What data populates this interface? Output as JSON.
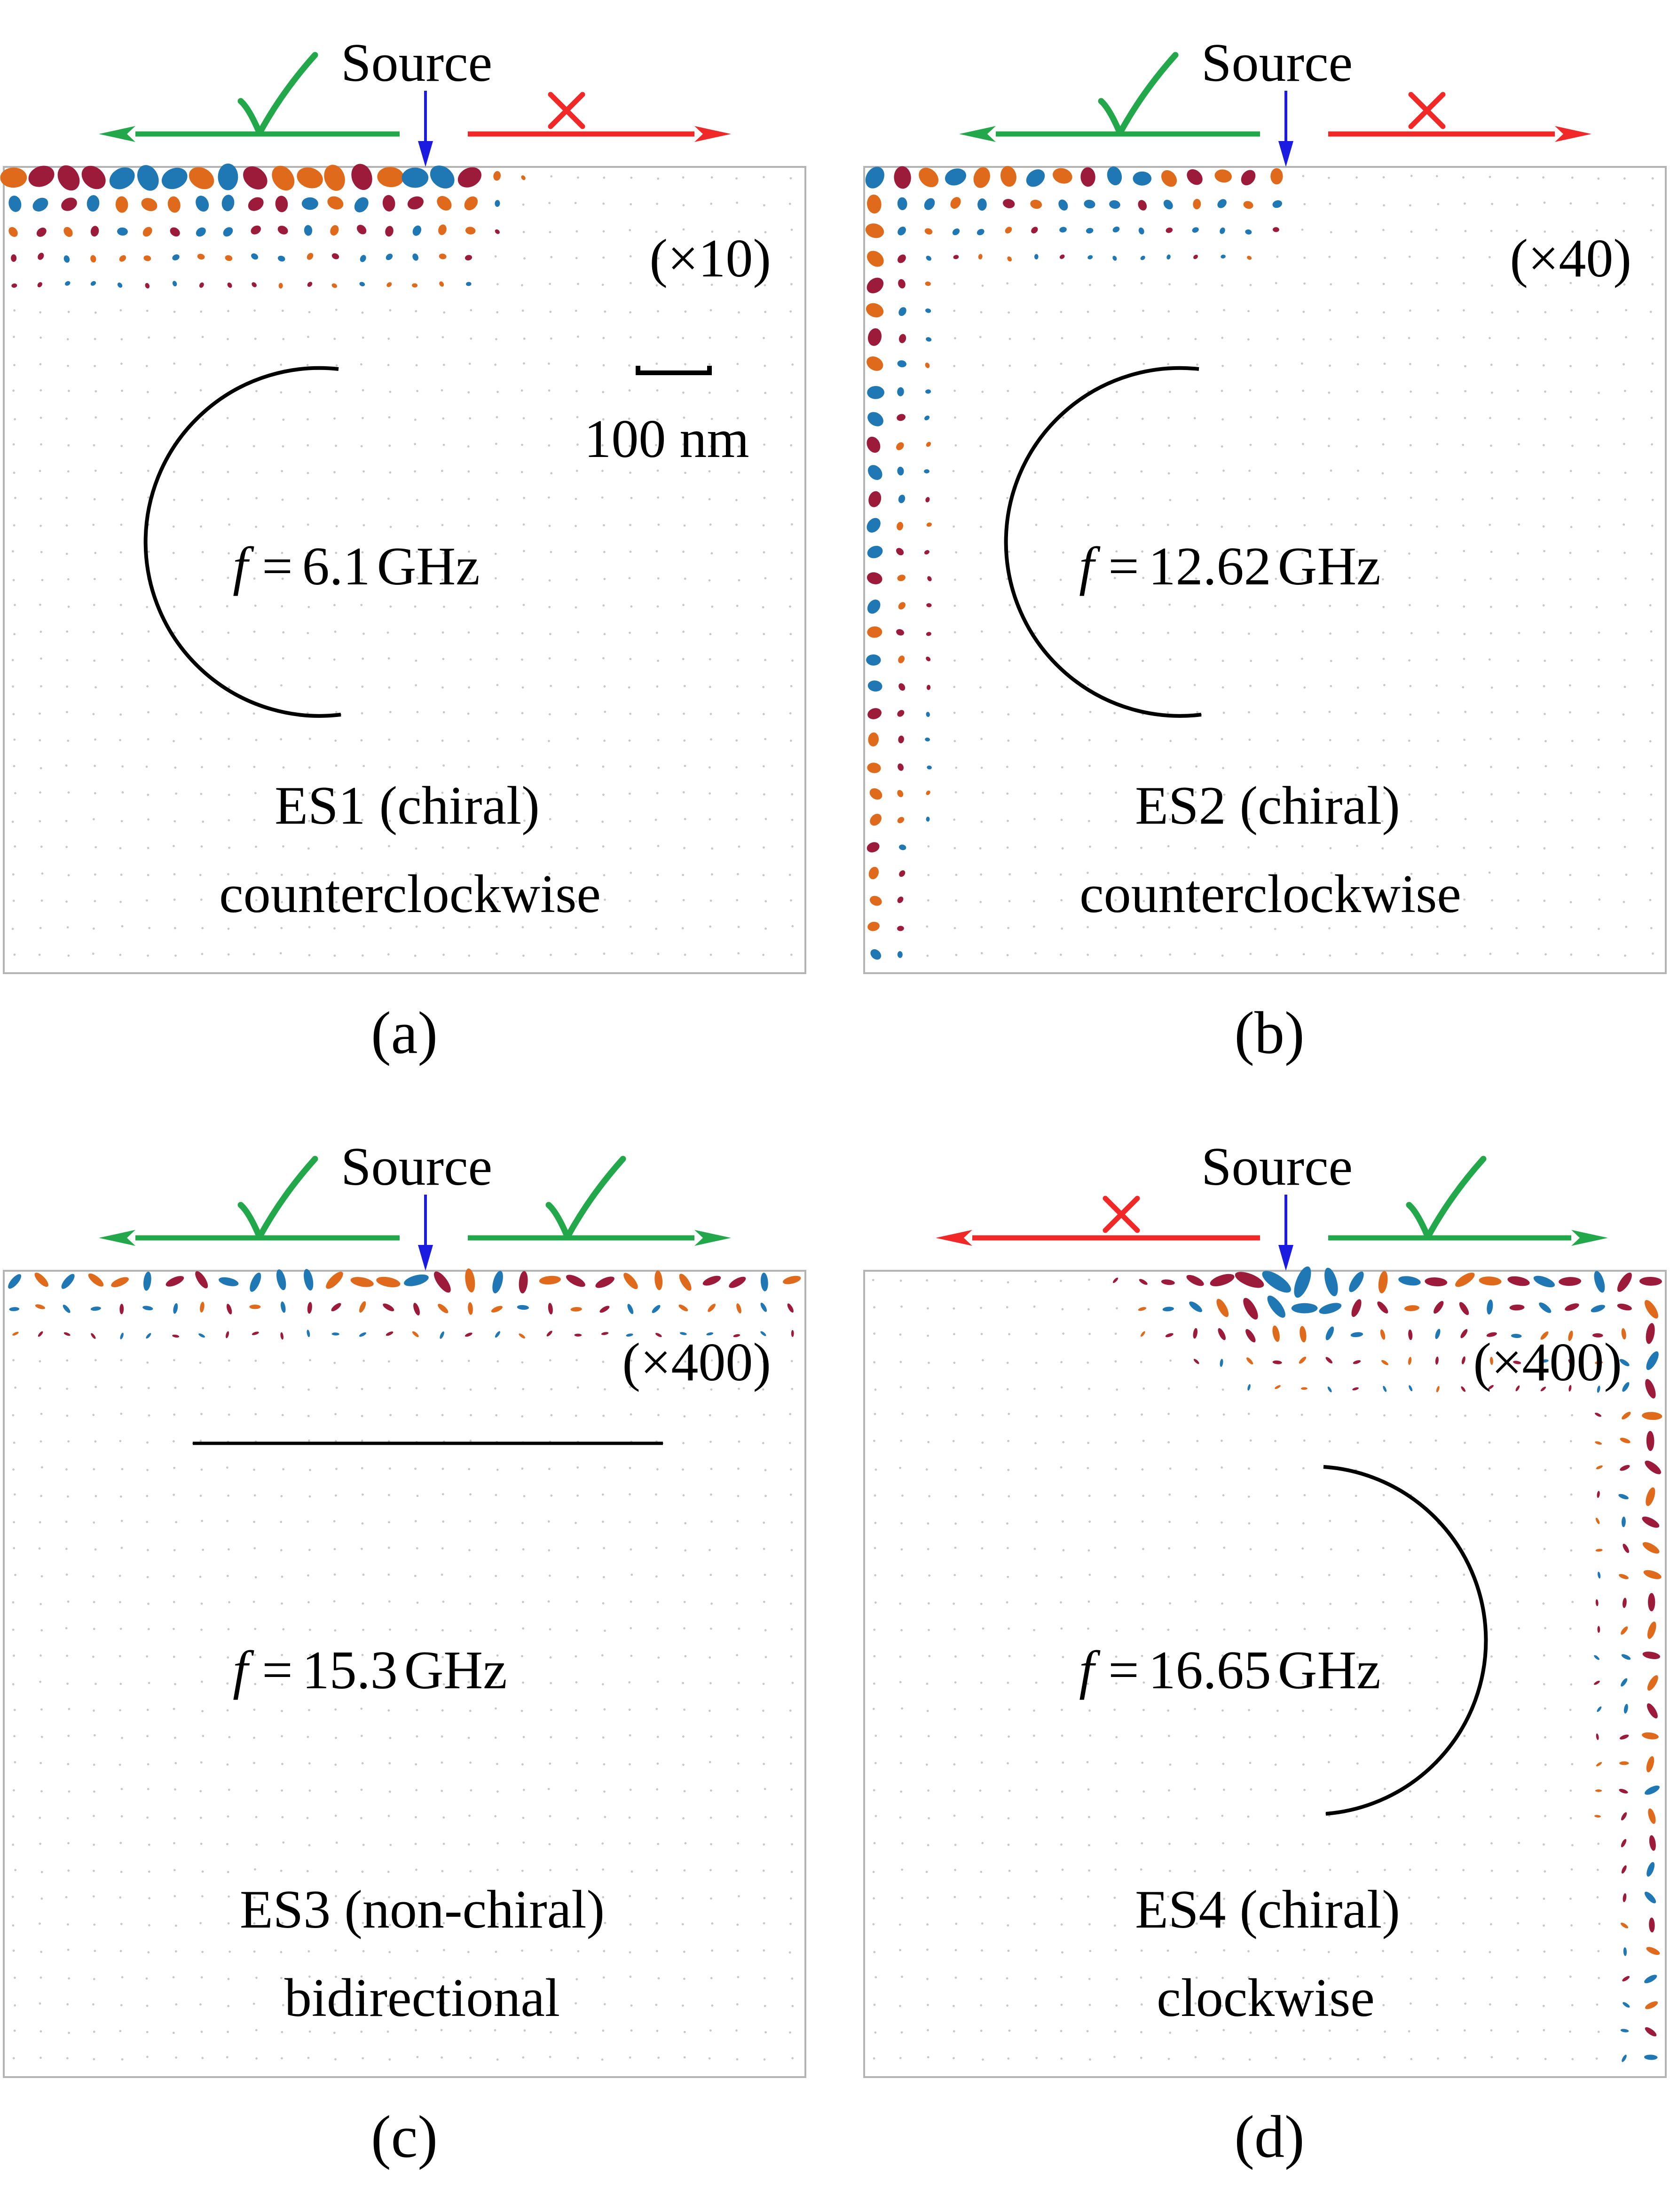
{
  "colors": {
    "allowed": "#22a84a",
    "blocked": "#f02828",
    "source": "#1c1ce0",
    "arrow": "#000000",
    "frame": "#b4b4b4",
    "dots": [
      "#1f77b4",
      "#e06a1b",
      "#9c1a3a",
      "#e8b225",
      "#7a2c8c",
      "#74a83a",
      "#5bbbe8"
    ]
  },
  "icons": {
    "allowed": "check-mark-icon",
    "blocked": "cross-mark-icon"
  },
  "panels": [
    {
      "id": "a",
      "label": "(a)",
      "source": "Source",
      "magnification": "(×10)",
      "scale_bar": "100 nm",
      "f_symbol": "f",
      "f_equals": "=",
      "f_value": "6.1",
      "f_unit": "GHz",
      "mode": "ES1 (chiral)",
      "direction": "counterclockwise",
      "left_status": "allowed",
      "right_status": "blocked",
      "arrow_type": "ccw"
    },
    {
      "id": "b",
      "label": "(b)",
      "source": "Source",
      "magnification": "(×40)",
      "f_symbol": "f",
      "f_equals": "=",
      "f_value": "12.62",
      "f_unit": "GHz",
      "mode": "ES2 (chiral)",
      "direction": "counterclockwise",
      "left_status": "allowed",
      "right_status": "blocked",
      "arrow_type": "ccw"
    },
    {
      "id": "c",
      "label": "(c)",
      "source": "Source",
      "magnification": "(×400)",
      "f_symbol": "f",
      "f_equals": "=",
      "f_value": "15.3",
      "f_unit": "GHz",
      "mode": "ES3 (non-chiral)",
      "direction": "bidirectional",
      "left_status": "allowed",
      "right_status": "allowed",
      "arrow_type": "both"
    },
    {
      "id": "d",
      "label": "(d)",
      "source": "Source",
      "magnification": "(×400)",
      "f_symbol": "f",
      "f_equals": "=",
      "f_value": "16.65",
      "f_unit": "GHz",
      "mode": "ES4 (chiral)",
      "direction": "clockwise",
      "left_status": "blocked",
      "right_status": "allowed",
      "arrow_type": "cw"
    }
  ]
}
